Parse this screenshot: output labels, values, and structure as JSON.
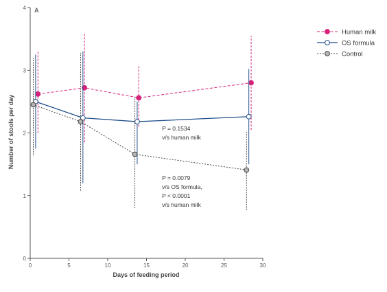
{
  "chart_data": {
    "type": "line",
    "panel_label": "A",
    "xlabel": "Days of feeding period",
    "ylabel": "Number of stools per day",
    "xlim": [
      0,
      30
    ],
    "ylim": [
      0,
      4
    ],
    "xticks": [
      0,
      5,
      10,
      15,
      20,
      25,
      30
    ],
    "yticks": [
      0,
      1,
      2,
      3,
      4
    ],
    "grid": false,
    "legend_position": "top-right",
    "series": [
      {
        "name": "Human milk",
        "color": "#d6227a",
        "line_style": "dashed",
        "marker": "filled-circle",
        "x": [
          1,
          7,
          14,
          28.5
        ],
        "y": [
          2.62,
          2.72,
          2.56,
          2.8
        ],
        "err_low": [
          2.0,
          1.85,
          2.1,
          2.05
        ],
        "err_high": [
          3.3,
          3.6,
          3.08,
          3.55
        ]
      },
      {
        "name": "OS formula",
        "color": "#1f4e8c",
        "line_style": "solid",
        "marker": "open-circle",
        "x": [
          0.7,
          6.8,
          13.8,
          28.2
        ],
        "y": [
          2.5,
          2.24,
          2.18,
          2.26
        ],
        "err_low": [
          1.75,
          1.2,
          1.5,
          1.5
        ],
        "err_high": [
          3.25,
          3.3,
          2.5,
          3.02
        ]
      },
      {
        "name": "Control",
        "color": "#444444",
        "line_style": "dotted",
        "marker": "gray-circle",
        "x": [
          0.4,
          6.5,
          13.5,
          27.9
        ],
        "y": [
          2.45,
          2.18,
          1.66,
          1.41
        ],
        "err_low": [
          1.65,
          1.08,
          0.8,
          0.77
        ],
        "err_high": [
          3.2,
          3.28,
          2.58,
          2.02
        ]
      }
    ],
    "annotations": [
      {
        "lines": [
          "P = 0.1534",
          "v/s human milk"
        ],
        "x": 17,
        "y": 2.04
      },
      {
        "lines": [
          "P = 0.0079",
          "v/s OS formula,",
          "P < 0.0001",
          "v/s human milk"
        ],
        "x": 17,
        "y": 1.25
      }
    ]
  }
}
